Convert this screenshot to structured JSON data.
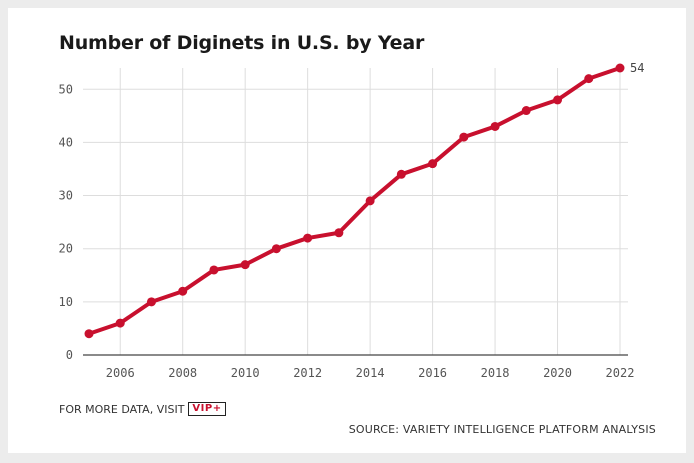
{
  "chart_data": {
    "type": "line",
    "title": "Number of Diginets in U.S. by Year",
    "xlabel": "",
    "ylabel": "",
    "x": [
      2005,
      2006,
      2007,
      2008,
      2009,
      2010,
      2011,
      2012,
      2013,
      2014,
      2015,
      2016,
      2017,
      2018,
      2019,
      2020,
      2021,
      2022
    ],
    "series": [
      {
        "name": "Diginets",
        "values": [
          4,
          6,
          10,
          12,
          16,
          17,
          20,
          22,
          23,
          29,
          34,
          36,
          41,
          43,
          46,
          48,
          52,
          54
        ]
      }
    ],
    "xlim": [
      2005,
      2022
    ],
    "ylim": [
      0,
      54
    ],
    "xticks": [
      2006,
      2008,
      2010,
      2012,
      2014,
      2016,
      2018,
      2020,
      2022
    ],
    "yticks": [
      0,
      10,
      20,
      30,
      40,
      50
    ],
    "end_label": "54",
    "grid": true,
    "line_color": "#c8102e"
  },
  "footer": {
    "more_data_text": "FOR MORE DATA, VISIT",
    "vip_badge": "VIP+",
    "source_text": "SOURCE: VARIETY INTELLIGENCE PLATFORM ANALYSIS"
  }
}
